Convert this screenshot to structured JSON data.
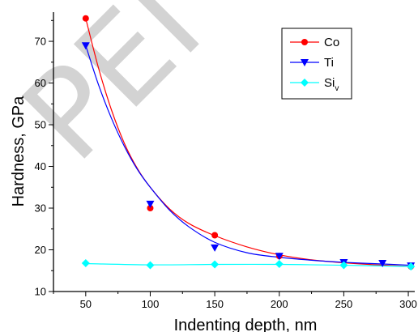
{
  "watermark": "PEI",
  "chart_data": {
    "type": "scatter",
    "title": "",
    "xlabel": "Indenting depth, nm",
    "ylabel": "Hardness, GPa",
    "xlim": [
      25,
      305
    ],
    "ylim": [
      10,
      77
    ],
    "xticks": [
      50,
      100,
      150,
      200,
      250,
      300
    ],
    "yticks": [
      10,
      20,
      30,
      40,
      50,
      60,
      70
    ],
    "grid": false,
    "legend_position": "top-right",
    "series": [
      {
        "name": "Co",
        "color": "#ff0000",
        "marker": "circle",
        "x": [
          50,
          100,
          150,
          200,
          302
        ],
        "y": [
          75.5,
          30.0,
          23.5,
          18.5,
          16.0
        ],
        "fit_curve": [
          [
            50,
            75.5
          ],
          [
            60,
            63.5
          ],
          [
            70,
            53.5
          ],
          [
            80,
            45.5
          ],
          [
            90,
            39.5
          ],
          [
            100,
            35.0
          ],
          [
            115,
            29.8
          ],
          [
            130,
            26.3
          ],
          [
            150,
            23.4
          ],
          [
            175,
            20.7
          ],
          [
            200,
            18.8
          ],
          [
            225,
            17.6
          ],
          [
            250,
            16.9
          ],
          [
            275,
            16.4
          ],
          [
            302,
            16.0
          ]
        ]
      },
      {
        "name": "Ti",
        "color": "#0000ff",
        "marker": "triangle-down",
        "x": [
          50,
          100,
          150,
          200,
          250,
          280,
          302
        ],
        "y": [
          69.0,
          31.0,
          20.5,
          18.5,
          17.0,
          16.8,
          16.2
        ],
        "fit_curve": [
          [
            50,
            69.0
          ],
          [
            60,
            59.5
          ],
          [
            70,
            51.5
          ],
          [
            80,
            44.8
          ],
          [
            90,
            39.3
          ],
          [
            100,
            35.0
          ],
          [
            115,
            29.5
          ],
          [
            130,
            25.5
          ],
          [
            150,
            21.8
          ],
          [
            175,
            19.3
          ],
          [
            200,
            18.2
          ],
          [
            225,
            17.5
          ],
          [
            250,
            17.0
          ],
          [
            280,
            16.6
          ],
          [
            302,
            16.3
          ]
        ]
      },
      {
        "name": "Si",
        "name_subscript": "v",
        "color": "#00ffff",
        "marker": "diamond",
        "x": [
          50,
          100,
          150,
          200,
          250,
          302
        ],
        "y": [
          16.8,
          16.3,
          16.5,
          16.6,
          16.3,
          16.0
        ],
        "fit_curve": [
          [
            50,
            16.7
          ],
          [
            100,
            16.4
          ],
          [
            150,
            16.5
          ],
          [
            200,
            16.5
          ],
          [
            250,
            16.3
          ],
          [
            302,
            16.0
          ]
        ]
      }
    ]
  }
}
